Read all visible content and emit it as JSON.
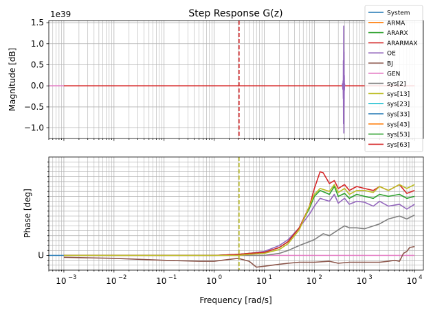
{
  "chart_data": {
    "type": "line",
    "title": "Step Response G(z)",
    "xlabel": "Frequency [rad/s]",
    "xscale": "log",
    "xlim": [
      0.0005,
      15000
    ],
    "x_tick_labels": [
      "10^-3",
      "10^-2",
      "10^-1",
      "10^0",
      "10^1",
      "10^2",
      "10^3",
      "10^4"
    ],
    "marker_line_x": 3.14,
    "legend": {
      "placement": "upper-right",
      "entries": [
        {
          "name": "System",
          "color": "#1f77b4"
        },
        {
          "name": "ARMA",
          "color": "#ff7f0e"
        },
        {
          "name": "ARARX",
          "color": "#2ca02c"
        },
        {
          "name": "ARARMAX",
          "color": "#d62728"
        },
        {
          "name": "OE",
          "color": "#9467bd"
        },
        {
          "name": "BJ",
          "color": "#8c564b"
        },
        {
          "name": "GEN",
          "color": "#e377c2"
        },
        {
          "name": "sys[2]",
          "color": "#7f7f7f"
        },
        {
          "name": "sys[13]",
          "color": "#bcbd22"
        },
        {
          "name": "sys[23]",
          "color": "#17becf"
        },
        {
          "name": "sys[33]",
          "color": "#1f77b4"
        },
        {
          "name": "sys[43]",
          "color": "#ff7f0e"
        },
        {
          "name": "sys[53]",
          "color": "#2ca02c"
        },
        {
          "name": "sys[63]",
          "color": "#d62728"
        }
      ]
    },
    "magnitude": {
      "ylabel": "Magnitude [dB]",
      "offset_label": "1e39",
      "ylim": [
        -1.25,
        1.55
      ],
      "yticks": [
        -1.0,
        -0.5,
        0.0,
        0.5,
        1.0,
        1.5
      ],
      "ytick_labels": [
        "−1.0",
        "−0.5",
        "0.0",
        "0.5",
        "1.0",
        "1.5"
      ],
      "grid": true,
      "series": [
        {
          "name": "GEN",
          "x": [
            0.0005,
            0.001
          ],
          "y": [
            0,
            0
          ]
        },
        {
          "name": "ARARMAX",
          "x": [
            0.001,
            10000
          ],
          "y": [
            0,
            0
          ]
        },
        {
          "name": "OE",
          "x": [
            360,
            365,
            370,
            375,
            378,
            380,
            382,
            385,
            388,
            390,
            392,
            395,
            398,
            400,
            405,
            410
          ],
          "y": [
            0,
            0.05,
            -0.08,
            0.12,
            -0.3,
            0.6,
            -0.9,
            1.42,
            -1.12,
            0.8,
            -0.5,
            0.25,
            -0.1,
            0.05,
            0,
            0
          ]
        }
      ]
    },
    "phase": {
      "ylabel": "Phase [deg]",
      "ytick_labels": [
        "U"
      ],
      "ylim": [
        -0.15,
        1.0
      ],
      "grid": true,
      "series": [
        {
          "name": "System",
          "x": [
            0.0005,
            0.001
          ],
          "y": [
            0,
            0
          ]
        },
        {
          "name": "GEN",
          "x": [
            0.001,
            10,
            30,
            100,
            1000,
            3000,
            10000
          ],
          "y": [
            0.0,
            0.0,
            0.0,
            0.0,
            0.0,
            0.0,
            0.0
          ]
        },
        {
          "name": "BJ",
          "x": [
            0.001,
            0.01,
            0.1,
            0.5,
            1,
            3,
            5,
            7,
            10,
            20,
            30,
            50,
            100,
            200,
            300,
            500,
            1000,
            2000,
            3000,
            4000,
            5000,
            6000,
            7000,
            8000,
            10000
          ],
          "y": [
            -0.02,
            -0.03,
            -0.05,
            -0.06,
            -0.06,
            -0.03,
            -0.06,
            -0.12,
            -0.11,
            -0.09,
            -0.08,
            -0.07,
            -0.07,
            -0.06,
            -0.08,
            -0.07,
            -0.07,
            -0.07,
            -0.06,
            -0.05,
            -0.06,
            0.02,
            0.04,
            0.08,
            0.09
          ]
        },
        {
          "name": "sys[2]",
          "x": [
            0.001,
            0.1,
            1,
            3,
            10,
            20,
            30,
            50,
            80,
            100,
            150,
            200,
            300,
            400,
            500,
            700,
            1000,
            2000,
            3000,
            5000,
            7000,
            10000
          ],
          "y": [
            0.0,
            0.0,
            0.0,
            0.0,
            0.0,
            0.02,
            0.05,
            0.1,
            0.14,
            0.16,
            0.22,
            0.2,
            0.26,
            0.3,
            0.28,
            0.28,
            0.27,
            0.32,
            0.37,
            0.4,
            0.37,
            0.41
          ]
        },
        {
          "name": "OE",
          "x": [
            0.001,
            0.1,
            1,
            3,
            5,
            10,
            20,
            30,
            50,
            80,
            100,
            130,
            200,
            250,
            300,
            400,
            500,
            700,
            1000,
            1500,
            2000,
            3000,
            5000,
            7000,
            10000
          ],
          "y": [
            0.0,
            0.0,
            0.0,
            0.01,
            0.02,
            0.04,
            0.1,
            0.16,
            0.28,
            0.42,
            0.5,
            0.58,
            0.55,
            0.62,
            0.53,
            0.58,
            0.52,
            0.55,
            0.54,
            0.5,
            0.55,
            0.5,
            0.52,
            0.47,
            0.52
          ]
        },
        {
          "name": "ARARX",
          "x": [
            0.001,
            0.1,
            1,
            3,
            5,
            10,
            20,
            30,
            50,
            80,
            100,
            130,
            200,
            250,
            300,
            400,
            500,
            700,
            1000,
            1500,
            2000,
            3000,
            5000,
            7000,
            10000
          ],
          "y": [
            0.0,
            0.0,
            0.0,
            0.01,
            0.02,
            0.03,
            0.08,
            0.14,
            0.28,
            0.48,
            0.6,
            0.66,
            0.62,
            0.7,
            0.6,
            0.63,
            0.58,
            0.62,
            0.6,
            0.58,
            0.62,
            0.6,
            0.62,
            0.58,
            0.6
          ]
        },
        {
          "name": "ARARMAX",
          "x": [
            0.001,
            0.1,
            1,
            3,
            5,
            10,
            20,
            30,
            50,
            80,
            100,
            130,
            150,
            200,
            250,
            300,
            400,
            500,
            700,
            1000,
            1500,
            2000,
            3000,
            5000,
            7000,
            10000
          ],
          "y": [
            0.0,
            0.0,
            0.0,
            0.01,
            0.02,
            0.03,
            0.08,
            0.14,
            0.28,
            0.5,
            0.68,
            0.85,
            0.84,
            0.73,
            0.76,
            0.68,
            0.72,
            0.66,
            0.7,
            0.68,
            0.66,
            0.7,
            0.66,
            0.72,
            0.63,
            0.66
          ]
        },
        {
          "name": "sys[13]",
          "x": [
            0.001,
            0.1,
            1,
            3,
            5,
            10,
            20,
            30,
            50,
            80,
            100,
            130,
            200,
            250,
            300,
            400,
            500,
            700,
            1000,
            1500,
            2000,
            3000,
            5000,
            7000,
            10000
          ],
          "y": [
            0.0,
            0.0,
            0.0,
            0.0,
            0.01,
            0.02,
            0.06,
            0.12,
            0.26,
            0.5,
            0.62,
            0.68,
            0.65,
            0.72,
            0.64,
            0.68,
            0.62,
            0.66,
            0.66,
            0.64,
            0.7,
            0.66,
            0.72,
            0.68,
            0.72
          ]
        }
      ]
    }
  }
}
